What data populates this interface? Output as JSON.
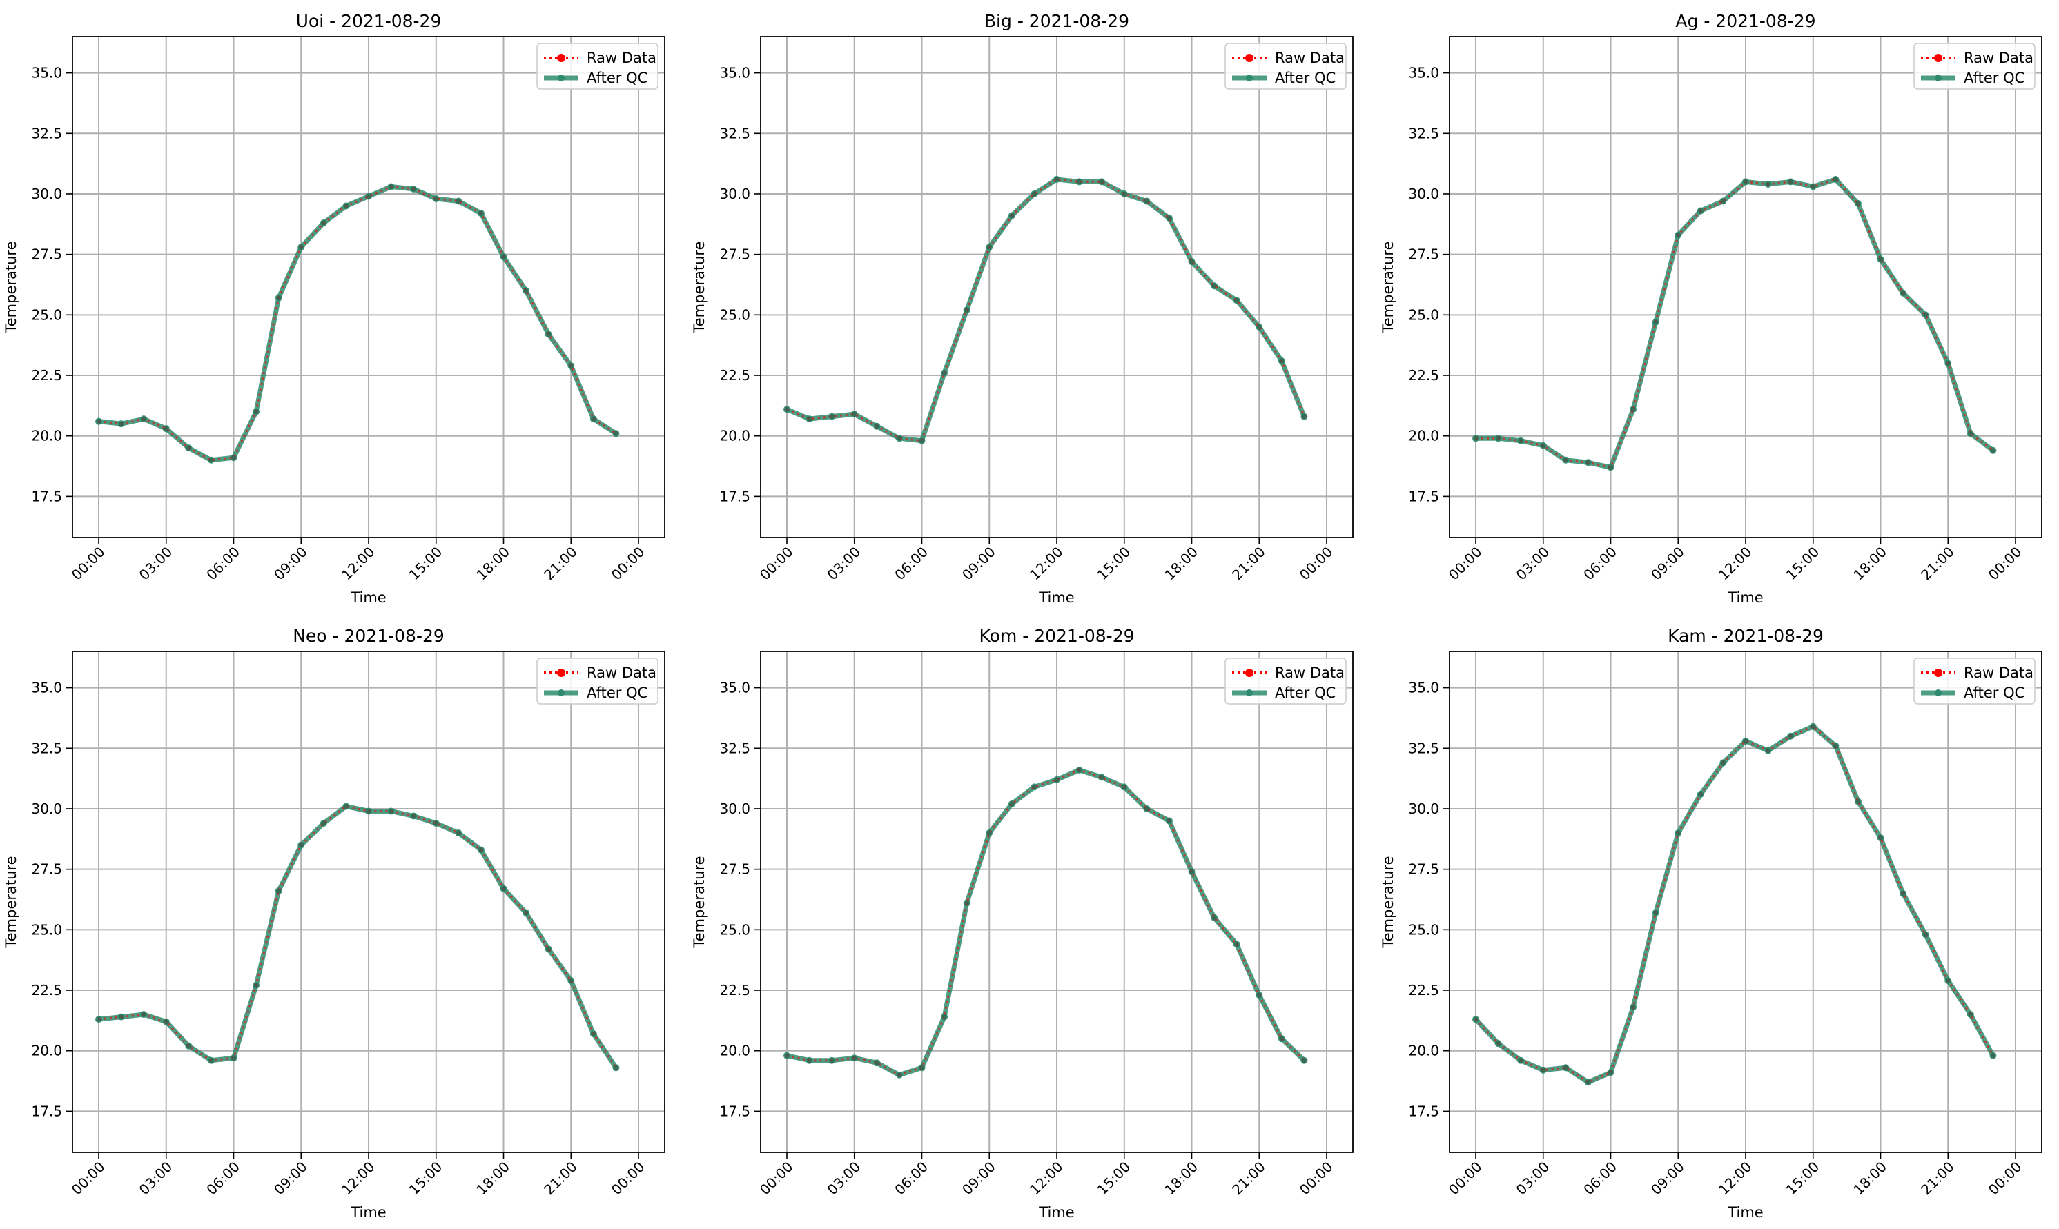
{
  "legend": {
    "raw_label": "Raw Data",
    "qc_label": "After QC"
  },
  "colors": {
    "raw": "#ff0000",
    "qc": "#2e8b6e",
    "grid": "#b0b0b0"
  },
  "chart_data": [
    {
      "type": "line",
      "title": "Uoi - 2021-08-29",
      "xlabel": "Time",
      "ylabel": "Temperature",
      "x": [
        "00:00",
        "01:00",
        "02:00",
        "03:00",
        "04:00",
        "05:00",
        "06:00",
        "07:00",
        "08:00",
        "09:00",
        "10:00",
        "11:00",
        "12:00",
        "13:00",
        "14:00",
        "15:00",
        "16:00",
        "17:00",
        "18:00",
        "19:00",
        "20:00",
        "21:00",
        "22:00",
        "23:00"
      ],
      "xticks": [
        "00:00",
        "03:00",
        "06:00",
        "09:00",
        "12:00",
        "15:00",
        "18:00",
        "21:00",
        "00:00"
      ],
      "yticks": [
        "17.5",
        "20.0",
        "22.5",
        "25.0",
        "27.5",
        "30.0",
        "32.5",
        "35.0"
      ],
      "ylim": [
        15.8,
        36.5
      ],
      "grid": true,
      "legend_position": "top-right",
      "series": [
        {
          "name": "Raw Data",
          "values": [
            20.6,
            20.5,
            20.7,
            20.3,
            19.5,
            19.0,
            19.1,
            21.0,
            25.7,
            27.8,
            28.8,
            29.5,
            29.9,
            30.3,
            30.2,
            29.8,
            29.7,
            29.2,
            27.4,
            26.0,
            24.2,
            22.9,
            20.7,
            20.1
          ]
        },
        {
          "name": "After QC",
          "values": [
            20.6,
            20.5,
            20.7,
            20.3,
            19.5,
            19.0,
            19.1,
            21.0,
            25.7,
            27.8,
            28.8,
            29.5,
            29.9,
            30.3,
            30.2,
            29.8,
            29.7,
            29.2,
            27.4,
            26.0,
            24.2,
            22.9,
            20.7,
            20.1
          ]
        }
      ]
    },
    {
      "type": "line",
      "title": "Big - 2021-08-29",
      "xlabel": "Time",
      "ylabel": "Temperature",
      "x": [
        "00:00",
        "01:00",
        "02:00",
        "03:00",
        "04:00",
        "05:00",
        "06:00",
        "07:00",
        "08:00",
        "09:00",
        "10:00",
        "11:00",
        "12:00",
        "13:00",
        "14:00",
        "15:00",
        "16:00",
        "17:00",
        "18:00",
        "19:00",
        "20:00",
        "21:00",
        "22:00",
        "23:00"
      ],
      "xticks": [
        "00:00",
        "03:00",
        "06:00",
        "09:00",
        "12:00",
        "15:00",
        "18:00",
        "21:00",
        "00:00"
      ],
      "yticks": [
        "17.5",
        "20.0",
        "22.5",
        "25.0",
        "27.5",
        "30.0",
        "32.5",
        "35.0"
      ],
      "ylim": [
        15.8,
        36.5
      ],
      "grid": true,
      "legend_position": "top-right",
      "series": [
        {
          "name": "Raw Data",
          "values": [
            21.1,
            20.7,
            20.8,
            20.9,
            20.4,
            19.9,
            19.8,
            22.6,
            25.2,
            27.8,
            29.1,
            30.0,
            30.6,
            30.5,
            30.5,
            30.0,
            29.7,
            29.0,
            27.2,
            26.2,
            25.6,
            24.5,
            23.1,
            20.8
          ]
        },
        {
          "name": "After QC",
          "values": [
            21.1,
            20.7,
            20.8,
            20.9,
            20.4,
            19.9,
            19.8,
            22.6,
            25.2,
            27.8,
            29.1,
            30.0,
            30.6,
            30.5,
            30.5,
            30.0,
            29.7,
            29.0,
            27.2,
            26.2,
            25.6,
            24.5,
            23.1,
            20.8
          ]
        }
      ]
    },
    {
      "type": "line",
      "title": "Ag - 2021-08-29",
      "xlabel": "Time",
      "ylabel": "Temperature",
      "x": [
        "00:00",
        "01:00",
        "02:00",
        "03:00",
        "04:00",
        "05:00",
        "06:00",
        "07:00",
        "08:00",
        "09:00",
        "10:00",
        "11:00",
        "12:00",
        "13:00",
        "14:00",
        "15:00",
        "16:00",
        "17:00",
        "18:00",
        "19:00",
        "20:00",
        "21:00",
        "22:00",
        "23:00"
      ],
      "xticks": [
        "00:00",
        "03:00",
        "06:00",
        "09:00",
        "12:00",
        "15:00",
        "18:00",
        "21:00",
        "00:00"
      ],
      "yticks": [
        "17.5",
        "20.0",
        "22.5",
        "25.0",
        "27.5",
        "30.0",
        "32.5",
        "35.0"
      ],
      "ylim": [
        15.8,
        36.5
      ],
      "grid": true,
      "legend_position": "top-right",
      "series": [
        {
          "name": "Raw Data",
          "values": [
            19.9,
            19.9,
            19.8,
            19.6,
            19.0,
            18.9,
            18.7,
            21.1,
            24.7,
            28.3,
            29.3,
            29.7,
            30.5,
            30.4,
            30.5,
            30.3,
            30.6,
            29.6,
            27.3,
            25.9,
            25.0,
            23.0,
            20.1,
            19.4
          ]
        },
        {
          "name": "After QC",
          "values": [
            19.9,
            19.9,
            19.8,
            19.6,
            19.0,
            18.9,
            18.7,
            21.1,
            24.7,
            28.3,
            29.3,
            29.7,
            30.5,
            30.4,
            30.5,
            30.3,
            30.6,
            29.6,
            27.3,
            25.9,
            25.0,
            23.0,
            20.1,
            19.4
          ]
        }
      ]
    },
    {
      "type": "line",
      "title": "Neo - 2021-08-29",
      "xlabel": "Time",
      "ylabel": "Temperature",
      "x": [
        "00:00",
        "01:00",
        "02:00",
        "03:00",
        "04:00",
        "05:00",
        "06:00",
        "07:00",
        "08:00",
        "09:00",
        "10:00",
        "11:00",
        "12:00",
        "13:00",
        "14:00",
        "15:00",
        "16:00",
        "17:00",
        "18:00",
        "19:00",
        "20:00",
        "21:00",
        "22:00",
        "23:00"
      ],
      "xticks": [
        "00:00",
        "03:00",
        "06:00",
        "09:00",
        "12:00",
        "15:00",
        "18:00",
        "21:00",
        "00:00"
      ],
      "yticks": [
        "17.5",
        "20.0",
        "22.5",
        "25.0",
        "27.5",
        "30.0",
        "32.5",
        "35.0"
      ],
      "ylim": [
        15.8,
        36.5
      ],
      "grid": true,
      "legend_position": "top-right",
      "series": [
        {
          "name": "Raw Data",
          "values": [
            21.3,
            21.4,
            21.5,
            21.2,
            20.2,
            19.6,
            19.7,
            22.7,
            26.6,
            28.5,
            29.4,
            30.1,
            29.9,
            29.9,
            29.7,
            29.4,
            29.0,
            28.3,
            26.7,
            25.7,
            24.2,
            22.9,
            20.7,
            19.3
          ]
        },
        {
          "name": "After QC",
          "values": [
            21.3,
            21.4,
            21.5,
            21.2,
            20.2,
            19.6,
            19.7,
            22.7,
            26.6,
            28.5,
            29.4,
            30.1,
            29.9,
            29.9,
            29.7,
            29.4,
            29.0,
            28.3,
            26.7,
            25.7,
            24.2,
            22.9,
            20.7,
            19.3
          ]
        }
      ]
    },
    {
      "type": "line",
      "title": "Kom - 2021-08-29",
      "xlabel": "Time",
      "ylabel": "Temperature",
      "x": [
        "00:00",
        "01:00",
        "02:00",
        "03:00",
        "04:00",
        "05:00",
        "06:00",
        "07:00",
        "08:00",
        "09:00",
        "10:00",
        "11:00",
        "12:00",
        "13:00",
        "14:00",
        "15:00",
        "16:00",
        "17:00",
        "18:00",
        "19:00",
        "20:00",
        "21:00",
        "22:00",
        "23:00"
      ],
      "xticks": [
        "00:00",
        "03:00",
        "06:00",
        "09:00",
        "12:00",
        "15:00",
        "18:00",
        "21:00",
        "00:00"
      ],
      "yticks": [
        "17.5",
        "20.0",
        "22.5",
        "25.0",
        "27.5",
        "30.0",
        "32.5",
        "35.0"
      ],
      "ylim": [
        15.8,
        36.5
      ],
      "grid": true,
      "legend_position": "top-right",
      "series": [
        {
          "name": "Raw Data",
          "values": [
            19.8,
            19.6,
            19.6,
            19.7,
            19.5,
            19.0,
            19.3,
            21.4,
            26.1,
            29.0,
            30.2,
            30.9,
            31.2,
            31.6,
            31.3,
            30.9,
            30.0,
            29.5,
            27.4,
            25.5,
            24.4,
            22.3,
            20.5,
            19.6
          ]
        },
        {
          "name": "After QC",
          "values": [
            19.8,
            19.6,
            19.6,
            19.7,
            19.5,
            19.0,
            19.3,
            21.4,
            26.1,
            29.0,
            30.2,
            30.9,
            31.2,
            31.6,
            31.3,
            30.9,
            30.0,
            29.5,
            27.4,
            25.5,
            24.4,
            22.3,
            20.5,
            19.6
          ]
        }
      ]
    },
    {
      "type": "line",
      "title": "Kam - 2021-08-29",
      "xlabel": "Time",
      "ylabel": "Temperature",
      "x": [
        "00:00",
        "01:00",
        "02:00",
        "03:00",
        "04:00",
        "05:00",
        "06:00",
        "07:00",
        "08:00",
        "09:00",
        "10:00",
        "11:00",
        "12:00",
        "13:00",
        "14:00",
        "15:00",
        "16:00",
        "17:00",
        "18:00",
        "19:00",
        "20:00",
        "21:00",
        "22:00",
        "23:00"
      ],
      "xticks": [
        "00:00",
        "03:00",
        "06:00",
        "09:00",
        "12:00",
        "15:00",
        "18:00",
        "21:00",
        "00:00"
      ],
      "yticks": [
        "17.5",
        "20.0",
        "22.5",
        "25.0",
        "27.5",
        "30.0",
        "32.5",
        "35.0"
      ],
      "ylim": [
        15.8,
        36.5
      ],
      "grid": true,
      "legend_position": "top-right",
      "series": [
        {
          "name": "Raw Data",
          "values": [
            21.3,
            20.3,
            19.6,
            19.2,
            19.3,
            18.7,
            19.1,
            21.8,
            25.7,
            29.0,
            30.6,
            31.9,
            32.8,
            32.4,
            33.0,
            33.4,
            32.6,
            30.3,
            28.8,
            26.5,
            24.8,
            22.9,
            21.5,
            19.8
          ]
        },
        {
          "name": "After QC",
          "values": [
            21.3,
            20.3,
            19.6,
            19.2,
            19.3,
            18.7,
            19.1,
            21.8,
            25.7,
            29.0,
            30.6,
            31.9,
            32.8,
            32.4,
            33.0,
            33.4,
            32.6,
            30.3,
            28.8,
            26.5,
            24.8,
            22.9,
            21.5,
            19.8
          ]
        }
      ]
    }
  ]
}
